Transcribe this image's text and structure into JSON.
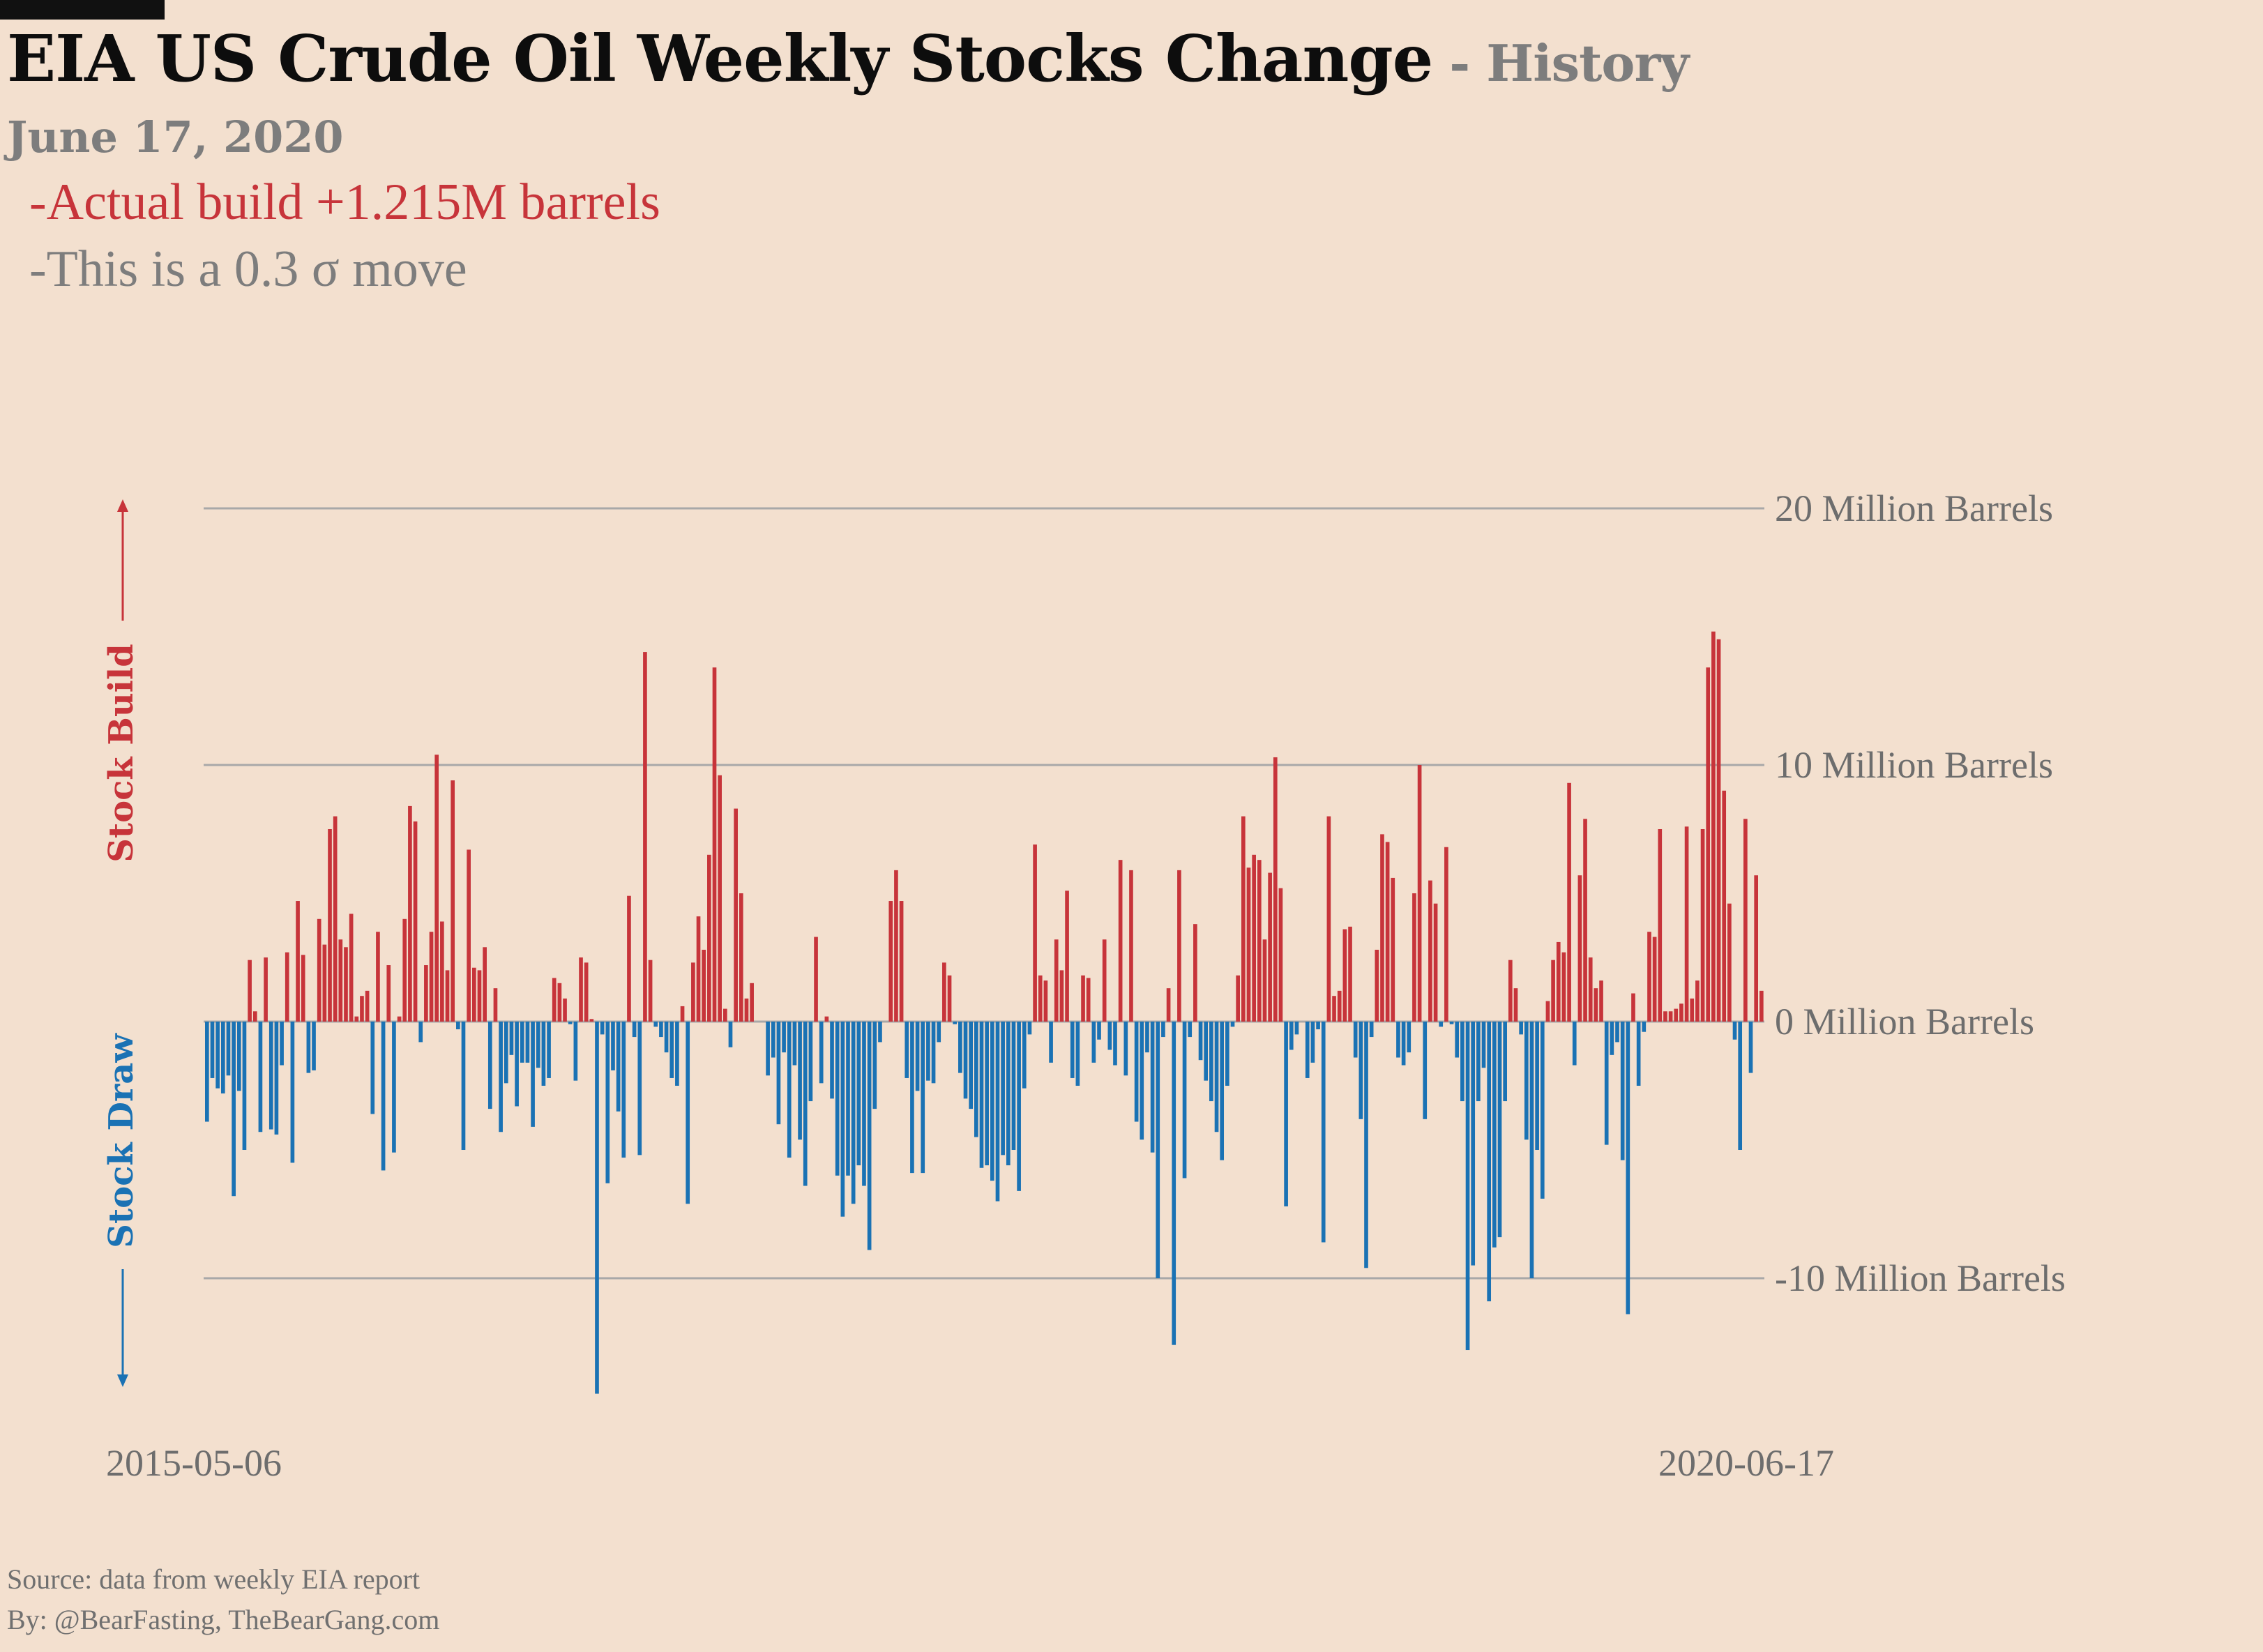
{
  "header": {
    "title": "EIA US Crude Oil Weekly Stocks Change",
    "separator": " - ",
    "subtitle": "History",
    "date": "June 17, 2020",
    "note_build": "-Actual build +1.215M barrels",
    "note_sigma": "-This is a 0.3 σ move"
  },
  "footer": {
    "source": "Source: data from  weekly EIA report",
    "by": "By: @BearFasting, TheBearGang.com"
  },
  "colors": {
    "build": "#c7343a",
    "draw": "#1a72b4",
    "gridline": "#a8a8a8",
    "background": "#f3e0cf"
  },
  "chart_data": {
    "type": "bar",
    "x_start_label": "2015-05-06",
    "x_end_label": "2020-06-17",
    "ylim": [
      -15,
      20
    ],
    "yticks": [
      {
        "value": 20,
        "label": "20 Million Barrels"
      },
      {
        "value": 10,
        "label": "10 Million Barrels"
      },
      {
        "value": 0,
        "label": "0 Million Barrels"
      },
      {
        "value": -10,
        "label": "-10 Million Barrels"
      }
    ],
    "up_label": "Stock Build",
    "down_label": "Stock Draw",
    "unit": "Million Barrels",
    "values": [
      -3.9,
      -2.2,
      -2.6,
      -2.8,
      -2.1,
      -6.8,
      -2.7,
      -5.0,
      2.4,
      0.4,
      -4.3,
      2.5,
      -4.2,
      -4.4,
      -1.7,
      2.7,
      -5.5,
      4.7,
      2.6,
      -2.0,
      -1.9,
      4.0,
      3.0,
      7.5,
      8.0,
      3.2,
      2.9,
      4.2,
      0.2,
      1.0,
      1.2,
      -3.6,
      3.5,
      -5.8,
      2.2,
      -5.1,
      0.2,
      4.0,
      8.4,
      7.8,
      -0.8,
      2.2,
      3.5,
      10.4,
      3.9,
      2.0,
      9.4,
      -0.3,
      -5.0,
      6.7,
      2.1,
      2.0,
      2.9,
      -3.4,
      1.3,
      -4.3,
      -2.4,
      -1.3,
      -3.3,
      -1.6,
      -1.6,
      -4.1,
      -1.8,
      -2.5,
      -2.2,
      1.7,
      1.5,
      0.9,
      -0.1,
      -2.3,
      2.5,
      2.3,
      0.1,
      -14.5,
      -0.5,
      -6.3,
      -1.9,
      -3.5,
      -5.3,
      4.9,
      -0.6,
      -5.2,
      14.4,
      2.4,
      -0.2,
      -0.6,
      -1.2,
      -2.2,
      -2.5,
      0.6,
      -7.1,
      2.3,
      4.1,
      2.8,
      6.5,
      13.8,
      9.6,
      0.5,
      -1.0,
      8.3,
      5.0,
      0.9,
      1.5,
      0.0,
      0.0,
      -2.1,
      -1.4,
      -4.0,
      -1.2,
      -5.3,
      -1.7,
      -4.6,
      -6.4,
      -3.1,
      3.3,
      -2.4,
      0.2,
      -3.0,
      -6.0,
      -7.6,
      -6.0,
      -7.1,
      -5.6,
      -6.4,
      -8.9,
      -3.4,
      -0.8,
      0.0,
      4.7,
      5.9,
      4.7,
      -2.2,
      -5.9,
      -2.7,
      -5.9,
      -2.3,
      -2.4,
      -0.8,
      2.3,
      1.8,
      -0.1,
      -2.0,
      -3.0,
      -3.4,
      -4.5,
      -5.7,
      -5.6,
      -6.2,
      -7.0,
      -5.2,
      -5.6,
      -5.0,
      -6.6,
      -2.6,
      -0.5,
      6.9,
      1.8,
      1.6,
      -1.6,
      3.2,
      2.0,
      5.1,
      -2.2,
      -2.5,
      1.8,
      1.7,
      -1.6,
      -0.7,
      3.2,
      -1.1,
      -1.7,
      6.3,
      -2.1,
      5.9,
      -3.9,
      -4.6,
      -1.2,
      -5.1,
      -10.0,
      -0.6,
      1.3,
      -12.6,
      5.9,
      -6.1,
      -0.6,
      3.8,
      -1.5,
      -2.3,
      -3.1,
      -4.3,
      -5.4,
      -2.5,
      -0.2,
      1.8,
      8.0,
      6.0,
      6.5,
      6.3,
      3.2,
      5.8,
      10.3,
      5.2,
      -7.2,
      -1.1,
      -0.5,
      0.0,
      -2.2,
      -1.6,
      -0.3,
      -8.6,
      8.0,
      1.0,
      1.2,
      3.6,
      3.7,
      -1.4,
      -3.8,
      -9.6,
      -0.6,
      2.8,
      7.3,
      7.0,
      5.6,
      -1.4,
      -1.7,
      -1.2,
      5.0,
      10.0,
      -3.8,
      5.5,
      4.6,
      -0.2,
      6.8,
      -0.1,
      -1.4,
      -3.1,
      -12.8,
      -9.5,
      -3.1,
      -1.8,
      -10.9,
      -8.8,
      -8.4,
      -3.1,
      2.4,
      1.3,
      -0.5,
      -4.6,
      -10.0,
      -5.0,
      -6.9,
      0.8,
      2.4,
      3.1,
      2.7,
      9.3,
      -1.7,
      5.7,
      7.9,
      2.5,
      1.3,
      1.6,
      -4.8,
      -1.3,
      -0.8,
      -5.4,
      -11.4,
      1.1,
      -2.5,
      -0.4,
      3.5,
      3.3,
      7.5,
      0.4,
      0.4,
      0.5,
      0.7,
      7.6,
      0.9,
      1.6,
      7.5,
      13.8,
      15.2,
      14.9,
      9.0,
      4.6,
      -0.7,
      -5.0,
      7.9,
      -2.0,
      5.7,
      1.2
    ]
  }
}
